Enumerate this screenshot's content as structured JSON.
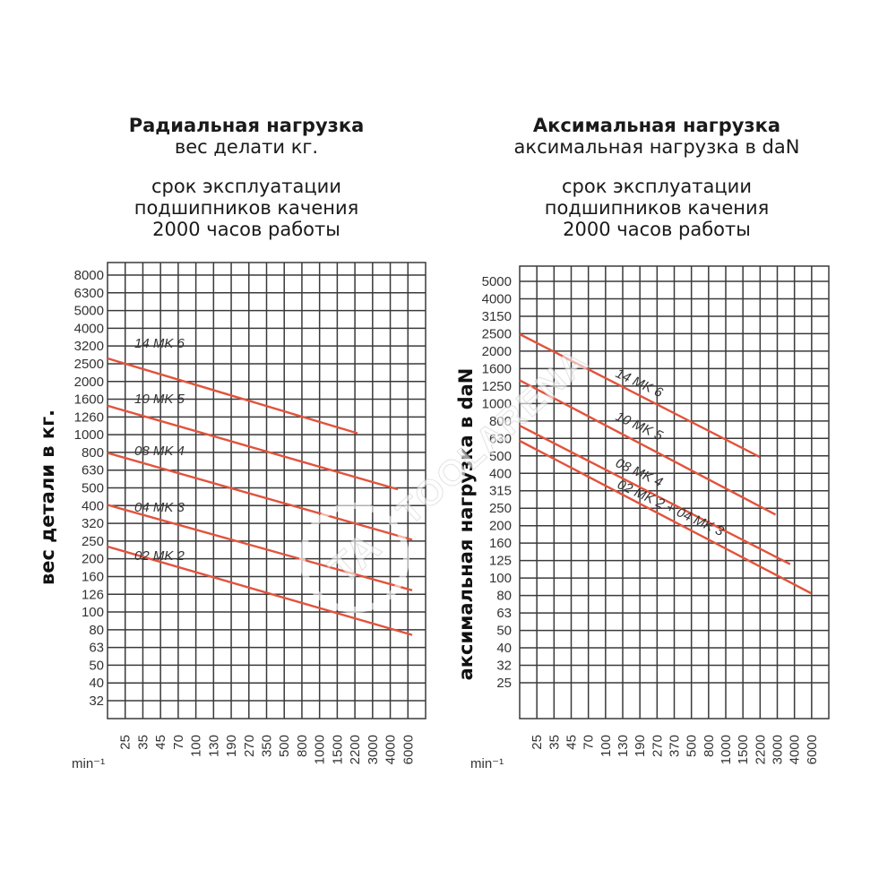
{
  "panels": [
    {
      "title": "Радиальная нагрузка",
      "subtitle": "вес делати кг.",
      "note_lines": [
        "срок эксплуатации",
        "подшипников качения",
        "2000 часов работы"
      ]
    },
    {
      "title": "Аксимальная нагрузка",
      "subtitle": "аксимальная нагрузка в daN",
      "note_lines": [
        "срок эксплуатации",
        "подшипников качения",
        "2000 часов работы"
      ]
    }
  ],
  "watermark": {
    "text": "TOOLARENA",
    "logo": "TA"
  },
  "chart_data": [
    {
      "type": "line",
      "xlabel": "min⁻¹",
      "ylabel": "вес детали в кг.",
      "xscale": "log",
      "yscale": "log",
      "grid": true,
      "x_ticks": [
        "25",
        "35",
        "45",
        "70",
        "100",
        "130",
        "190",
        "270",
        "350",
        "500",
        "800",
        "1000",
        "1500",
        "2200",
        "3000",
        "4000",
        "6000"
      ],
      "y_ticks": [
        "8000",
        "6300",
        "5000",
        "4000",
        "3200",
        "2500",
        "2000",
        "1600",
        "1260",
        "1000",
        "800",
        "630",
        "500",
        "400",
        "320",
        "250",
        "200",
        "160",
        "126",
        "100",
        "80",
        "63",
        "50",
        "40",
        "32"
      ],
      "series": [
        {
          "name": "14 MK 6",
          "x": [
            20,
            100,
            3000
          ],
          "y": [
            3000,
            3000,
            1000
          ]
        },
        {
          "name": "10 MK 5",
          "x": [
            20,
            100,
            5000
          ],
          "y": [
            1500,
            1500,
            440
          ]
        },
        {
          "name": "08 MK 4",
          "x": [
            20,
            100,
            6000
          ],
          "y": [
            750,
            750,
            210
          ]
        },
        {
          "name": "04 MK 3",
          "x": [
            20,
            100,
            6000
          ],
          "y": [
            350,
            350,
            100
          ]
        },
        {
          "name": "02 MK 2",
          "x": [
            20,
            100,
            6000
          ],
          "y": [
            190,
            190,
            52
          ]
        }
      ]
    },
    {
      "type": "line",
      "xlabel": "min⁻¹",
      "ylabel": "аксимальная нагрузка в daN",
      "xscale": "log",
      "yscale": "log",
      "grid": true,
      "x_ticks": [
        "25",
        "35",
        "45",
        "70",
        "100",
        "130",
        "190",
        "270",
        "370",
        "500",
        "800",
        "1000",
        "1500",
        "2200",
        "3000",
        "4000",
        "6000"
      ],
      "y_ticks": [
        "5000",
        "4000",
        "3150",
        "2500",
        "2000",
        "1600",
        "1250",
        "1000",
        "800",
        "630",
        "500",
        "400",
        "315",
        "250",
        "200",
        "160",
        "125",
        "100",
        "80",
        "63",
        "50",
        "40",
        "32",
        "25"
      ],
      "series": [
        {
          "name": "14 MK 6",
          "x": [
            20,
            2200
          ],
          "y": [
            2600,
            500
          ]
        },
        {
          "name": "10 MK 5",
          "x": [
            20,
            3000
          ],
          "y": [
            1400,
            230
          ]
        },
        {
          "name": "08 MK 4",
          "x": [
            20,
            4000
          ],
          "y": [
            760,
            118
          ]
        },
        {
          "name": "02 MK 2 + 04 MK 3",
          "x": [
            20,
            6000
          ],
          "y": [
            620,
            80
          ]
        }
      ]
    }
  ]
}
